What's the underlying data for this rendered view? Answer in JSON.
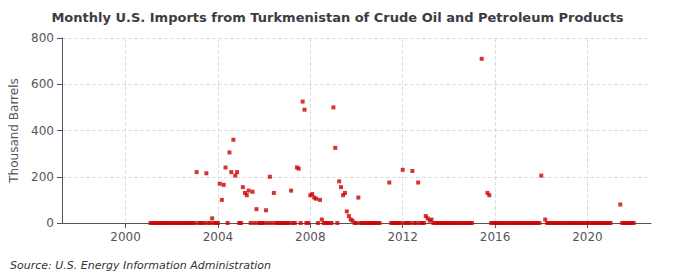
{
  "chart_data": {
    "type": "scatter",
    "title": "Monthly U.S. Imports from Turkmenistan of Crude Oil and Petroleum Products",
    "ylabel": "Thousand Barrels",
    "annotations": [
      "Source: U.S. Energy Information Administration"
    ],
    "color": "#cc0000",
    "marker": "square",
    "grid": true,
    "xlim": [
      1997.25,
      2022.75
    ],
    "xticks": [
      2000,
      2004,
      2008,
      2012,
      2016,
      2020
    ],
    "ylim": [
      0,
      800
    ],
    "yticks": [
      0,
      200,
      400,
      600,
      800
    ],
    "x": [
      2001.08,
      2001.17,
      2001.25,
      2001.33,
      2001.42,
      2001.5,
      2001.58,
      2001.67,
      2001.75,
      2001.83,
      2001.92,
      2002.0,
      2002.08,
      2002.17,
      2002.25,
      2002.33,
      2002.42,
      2002.5,
      2002.58,
      2002.67,
      2002.75,
      2002.83,
      2002.92,
      2003.0,
      2003.08,
      2003.17,
      2003.25,
      2003.33,
      2003.42,
      2003.5,
      2003.58,
      2003.67,
      2003.75,
      2003.83,
      2003.92,
      2004.0,
      2004.08,
      2004.17,
      2004.25,
      2004.33,
      2004.42,
      2004.5,
      2004.58,
      2004.67,
      2004.75,
      2004.83,
      2004.92,
      2005.0,
      2005.08,
      2005.17,
      2005.25,
      2005.33,
      2005.42,
      2005.5,
      2005.58,
      2005.67,
      2005.75,
      2005.83,
      2005.92,
      2006.0,
      2006.08,
      2006.17,
      2006.25,
      2006.33,
      2006.42,
      2006.5,
      2006.58,
      2006.67,
      2006.75,
      2006.83,
      2006.92,
      2007.0,
      2007.08,
      2007.17,
      2007.25,
      2007.33,
      2007.42,
      2007.5,
      2007.58,
      2007.67,
      2007.75,
      2007.83,
      2007.92,
      2008.0,
      2008.08,
      2008.17,
      2008.25,
      2008.33,
      2008.42,
      2008.5,
      2008.58,
      2008.67,
      2008.75,
      2008.83,
      2008.92,
      2009.0,
      2009.08,
      2009.17,
      2009.25,
      2009.33,
      2009.42,
      2009.5,
      2009.58,
      2009.67,
      2009.75,
      2009.83,
      2009.92,
      2010.0,
      2010.08,
      2010.17,
      2010.25,
      2010.33,
      2010.42,
      2010.5,
      2010.58,
      2010.67,
      2010.75,
      2010.83,
      2010.92,
      2011.0,
      2011.42,
      2011.5,
      2011.58,
      2011.67,
      2011.75,
      2011.83,
      2011.92,
      2012.0,
      2012.08,
      2012.17,
      2012.25,
      2012.33,
      2012.42,
      2012.5,
      2012.58,
      2012.67,
      2012.75,
      2012.83,
      2012.92,
      2013.0,
      2013.08,
      2013.17,
      2013.25,
      2013.33,
      2013.42,
      2013.5,
      2013.58,
      2013.67,
      2013.75,
      2013.83,
      2013.92,
      2014.0,
      2014.08,
      2014.17,
      2014.25,
      2014.33,
      2014.42,
      2014.5,
      2014.58,
      2014.67,
      2014.75,
      2014.83,
      2014.92,
      2015.0,
      2015.42,
      2015.67,
      2015.75,
      2015.83,
      2015.92,
      2016.0,
      2016.08,
      2016.17,
      2016.25,
      2016.33,
      2016.42,
      2016.5,
      2016.58,
      2016.67,
      2016.75,
      2016.83,
      2016.92,
      2017.0,
      2017.08,
      2017.17,
      2017.25,
      2017.33,
      2017.42,
      2017.5,
      2017.58,
      2017.67,
      2017.75,
      2017.83,
      2017.92,
      2018.0,
      2018.17,
      2018.25,
      2018.33,
      2018.42,
      2018.5,
      2018.58,
      2018.67,
      2018.75,
      2018.83,
      2018.92,
      2019.0,
      2019.08,
      2019.17,
      2019.25,
      2019.33,
      2019.42,
      2019.5,
      2019.58,
      2019.67,
      2019.75,
      2019.83,
      2019.92,
      2020.0,
      2020.08,
      2020.17,
      2020.25,
      2020.33,
      2020.42,
      2020.5,
      2020.58,
      2020.67,
      2020.75,
      2020.83,
      2020.92,
      2021.0,
      2021.42,
      2021.5,
      2021.58,
      2021.67,
      2021.75,
      2021.83,
      2021.92,
      2022.0
    ],
    "values": [
      0,
      0,
      0,
      0,
      0,
      0,
      0,
      0,
      0,
      0,
      0,
      0,
      0,
      0,
      0,
      0,
      0,
      0,
      0,
      0,
      0,
      0,
      0,
      0,
      220,
      0,
      0,
      0,
      0,
      215,
      0,
      0,
      20,
      0,
      0,
      0,
      170,
      100,
      165,
      240,
      0,
      305,
      220,
      360,
      205,
      220,
      0,
      0,
      155,
      130,
      120,
      140,
      0,
      135,
      0,
      60,
      0,
      0,
      0,
      0,
      55,
      0,
      200,
      0,
      130,
      0,
      0,
      0,
      0,
      0,
      0,
      0,
      0,
      140,
      0,
      0,
      240,
      235,
      0,
      525,
      490,
      0,
      0,
      120,
      125,
      110,
      105,
      0,
      100,
      15,
      0,
      0,
      0,
      0,
      0,
      500,
      325,
      0,
      180,
      155,
      120,
      130,
      50,
      30,
      15,
      10,
      0,
      0,
      110,
      0,
      0,
      0,
      0,
      0,
      0,
      0,
      0,
      0,
      0,
      0,
      175,
      0,
      0,
      0,
      0,
      0,
      0,
      230,
      0,
      0,
      0,
      0,
      225,
      0,
      0,
      175,
      0,
      0,
      0,
      30,
      20,
      10,
      15,
      0,
      0,
      0,
      0,
      0,
      0,
      0,
      0,
      0,
      0,
      0,
      0,
      0,
      0,
      0,
      0,
      0,
      0,
      0,
      0,
      0,
      710,
      130,
      120,
      0,
      0,
      0,
      0,
      0,
      0,
      0,
      0,
      0,
      0,
      0,
      0,
      0,
      0,
      0,
      0,
      0,
      0,
      0,
      0,
      0,
      0,
      0,
      0,
      0,
      0,
      205,
      15,
      0,
      0,
      0,
      0,
      0,
      0,
      0,
      0,
      0,
      0,
      0,
      0,
      0,
      0,
      0,
      0,
      0,
      0,
      0,
      0,
      0,
      0,
      0,
      0,
      0,
      0,
      0,
      0,
      0,
      0,
      0,
      0,
      0,
      0,
      80,
      0,
      0,
      0,
      0,
      0,
      0,
      0
    ]
  }
}
